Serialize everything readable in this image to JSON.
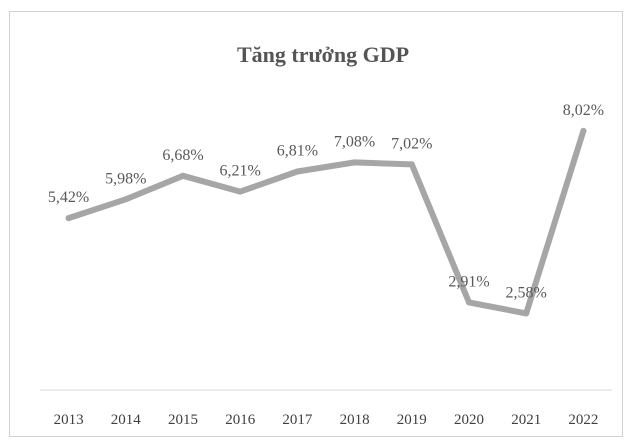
{
  "chart_data": {
    "type": "line",
    "title": "Tăng trưởng GDP",
    "xlabel": "",
    "ylabel": "",
    "categories": [
      "2013",
      "2014",
      "2015",
      "2016",
      "2017",
      "2018",
      "2019",
      "2020",
      "2021",
      "2022"
    ],
    "series": [
      {
        "values": [
          5.42,
          5.98,
          6.68,
          6.21,
          6.81,
          7.08,
          7.02,
          2.91,
          2.58,
          8.02
        ],
        "labels": [
          "5,42%",
          "5,98%",
          "6,68%",
          "6,21%",
          "6,81%",
          "7,08%",
          "7,02%",
          "2,91%",
          "2,58%",
          "8,02%"
        ],
        "color": "#a6a6a6"
      }
    ],
    "ylim": [
      0,
      9
    ],
    "grid": false,
    "legend": "none"
  }
}
